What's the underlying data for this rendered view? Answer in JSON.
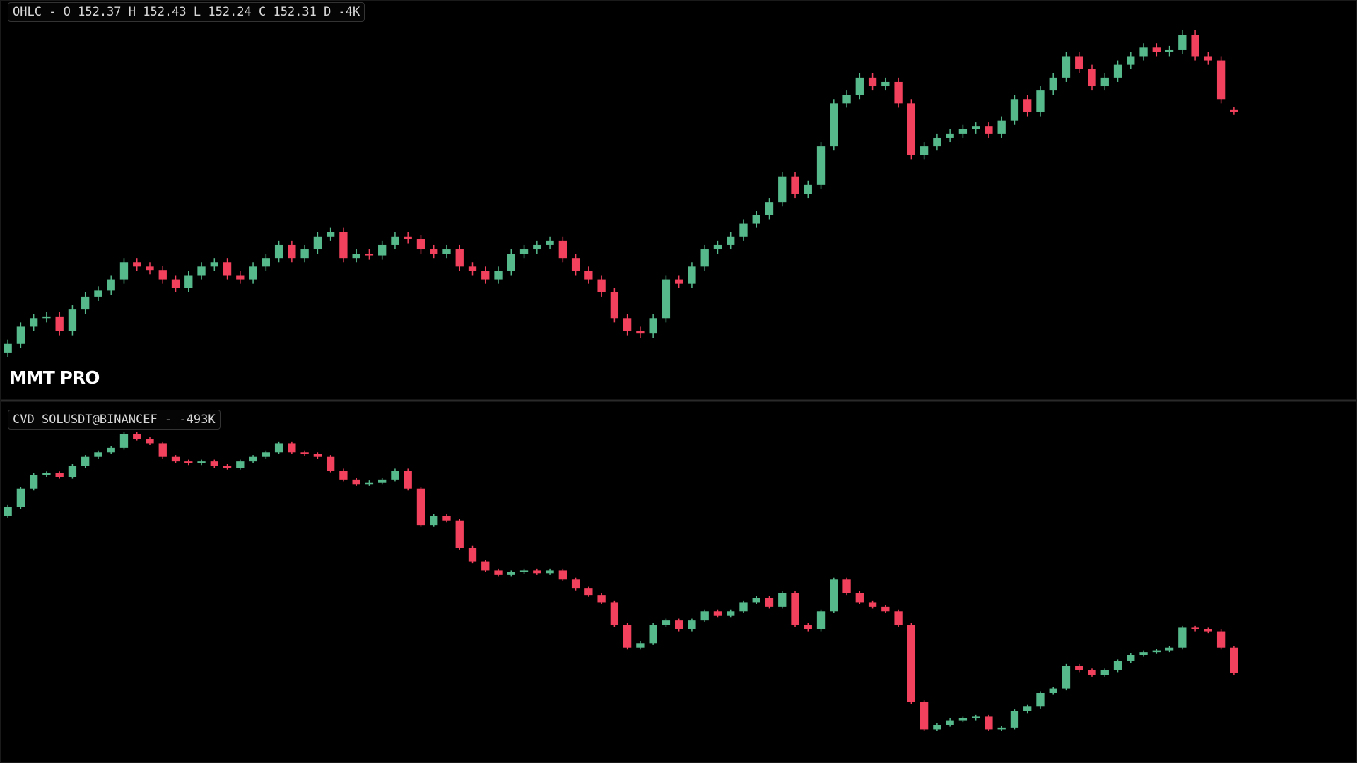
{
  "chart_data": [
    {
      "type": "candlestick",
      "legend": "OHLC - O 152.37 H 152.43 L 152.24 C 152.31 D -4K",
      "watermark": "MMT PRO",
      "up_color": "#56b98c",
      "down_color": "#f2415c",
      "open": [
        146.71,
        146.91,
        147.31,
        147.51,
        147.55,
        147.21,
        147.71,
        148.01,
        148.15,
        148.41,
        148.81,
        148.71,
        148.63,
        148.41,
        148.21,
        148.51,
        148.71,
        148.81,
        148.51,
        148.41,
        148.71,
        148.91,
        149.21,
        148.91,
        149.11,
        149.41,
        149.51,
        148.91,
        149.01,
        148.97,
        149.21,
        149.41,
        149.35,
        149.11,
        149.01,
        149.11,
        148.71,
        148.61,
        148.41,
        148.61,
        149.01,
        149.11,
        149.21,
        149.31,
        148.91,
        148.61,
        148.41,
        148.11,
        147.51,
        147.21,
        147.15,
        147.51,
        148.41,
        148.31,
        148.71,
        149.11,
        149.21,
        149.41,
        149.71,
        149.91,
        150.21,
        150.81,
        150.41,
        150.61,
        151.51,
        152.51,
        152.71,
        153.11,
        152.91,
        153.01,
        152.51,
        151.31,
        151.51,
        151.71,
        151.81,
        151.91,
        151.97,
        151.81,
        152.11,
        152.61,
        152.31,
        152.81,
        153.11,
        153.61,
        153.31,
        152.91,
        153.11,
        153.41,
        153.61,
        153.81,
        153.71,
        153.75,
        154.11,
        153.61,
        153.51,
        152.37
      ],
      "high": [
        147.01,
        147.41,
        147.61,
        147.65,
        147.65,
        147.81,
        148.11,
        148.25,
        148.51,
        148.91,
        148.91,
        148.81,
        148.73,
        148.51,
        148.61,
        148.81,
        148.91,
        148.91,
        148.61,
        148.81,
        149.01,
        149.31,
        149.31,
        149.21,
        149.51,
        149.61,
        149.61,
        149.11,
        149.11,
        149.31,
        149.51,
        149.51,
        149.45,
        149.21,
        149.21,
        149.21,
        148.81,
        148.71,
        148.71,
        149.11,
        149.21,
        149.31,
        149.41,
        149.41,
        149.01,
        148.71,
        148.51,
        148.21,
        147.61,
        147.31,
        147.61,
        148.51,
        148.51,
        148.81,
        149.21,
        149.31,
        149.51,
        149.81,
        150.01,
        150.31,
        150.91,
        150.91,
        150.71,
        151.61,
        152.61,
        152.81,
        153.21,
        153.21,
        153.11,
        153.11,
        152.61,
        151.61,
        151.81,
        151.91,
        152.01,
        152.07,
        152.07,
        152.21,
        152.71,
        152.71,
        152.91,
        153.21,
        153.71,
        153.71,
        153.41,
        153.21,
        153.51,
        153.71,
        153.91,
        153.91,
        153.85,
        154.21,
        154.21,
        153.71,
        153.61,
        152.43
      ],
      "low": [
        146.61,
        146.81,
        147.21,
        147.41,
        147.11,
        147.11,
        147.61,
        147.91,
        148.05,
        148.31,
        148.61,
        148.53,
        148.31,
        148.11,
        148.11,
        148.41,
        148.61,
        148.41,
        148.31,
        148.31,
        148.61,
        148.81,
        148.81,
        148.81,
        149.01,
        149.31,
        148.81,
        148.81,
        148.87,
        148.87,
        149.11,
        149.25,
        149.01,
        148.91,
        148.91,
        148.61,
        148.51,
        148.31,
        148.31,
        148.51,
        148.91,
        149.01,
        149.11,
        148.81,
        148.51,
        148.31,
        148.01,
        147.41,
        147.11,
        147.05,
        147.05,
        147.41,
        148.21,
        148.21,
        148.61,
        149.01,
        149.11,
        149.31,
        149.61,
        149.81,
        150.11,
        150.31,
        150.31,
        150.51,
        151.41,
        152.41,
        152.61,
        152.81,
        152.81,
        152.41,
        151.21,
        151.21,
        151.41,
        151.61,
        151.71,
        151.81,
        151.71,
        151.71,
        152.01,
        152.21,
        152.21,
        152.71,
        153.01,
        153.21,
        152.81,
        152.81,
        153.01,
        153.31,
        153.51,
        153.61,
        153.61,
        153.65,
        153.51,
        153.41,
        152.51,
        152.24
      ],
      "close": [
        146.91,
        147.31,
        147.51,
        147.55,
        147.21,
        147.71,
        148.01,
        148.15,
        148.41,
        148.81,
        148.71,
        148.63,
        148.41,
        148.21,
        148.51,
        148.71,
        148.81,
        148.51,
        148.41,
        148.71,
        148.91,
        149.21,
        148.91,
        149.11,
        149.41,
        149.51,
        148.91,
        149.01,
        148.97,
        149.21,
        149.41,
        149.35,
        149.11,
        149.01,
        149.11,
        148.71,
        148.61,
        148.41,
        148.61,
        149.01,
        149.11,
        149.21,
        149.31,
        148.91,
        148.61,
        148.41,
        148.11,
        147.51,
        147.21,
        147.15,
        147.51,
        148.41,
        148.31,
        148.71,
        149.11,
        149.21,
        149.41,
        149.71,
        149.91,
        150.21,
        150.81,
        150.41,
        150.61,
        151.51,
        152.51,
        152.71,
        153.11,
        152.91,
        153.01,
        152.51,
        151.31,
        151.51,
        151.71,
        151.81,
        151.91,
        151.97,
        151.81,
        152.11,
        152.61,
        152.31,
        152.81,
        153.11,
        153.61,
        153.31,
        152.91,
        153.11,
        153.41,
        153.61,
        153.81,
        153.71,
        153.75,
        154.11,
        153.61,
        153.51,
        152.61,
        152.31
      ]
    },
    {
      "type": "candlestick",
      "legend": "CVD SOLUSDT@BINANCEF - -493K",
      "up_color": "#56b98c",
      "down_color": "#f2415c",
      "open": [
        1237000,
        1337000,
        1537000,
        1687000,
        1707000,
        1667000,
        1787000,
        1887000,
        1937000,
        1987000,
        2137000,
        2087000,
        2037000,
        1887000,
        1837000,
        1817000,
        1837000,
        1787000,
        1767000,
        1837000,
        1887000,
        1937000,
        2037000,
        1937000,
        1917000,
        1887000,
        1737000,
        1637000,
        1587000,
        1607000,
        1637000,
        1737000,
        1537000,
        1137000,
        1237000,
        1187000,
        887000,
        737000,
        637000,
        587000,
        617000,
        637000,
        607000,
        637000,
        537000,
        437000,
        367000,
        287000,
        37000,
        -213000,
        -163000,
        37000,
        87000,
        -13000,
        87000,
        187000,
        137000,
        187000,
        287000,
        337000,
        237000,
        387000,
        37000,
        -13000,
        187000,
        537000,
        387000,
        287000,
        237000,
        187000,
        37000,
        -813000,
        -1113000,
        -1063000,
        -1013000,
        -993000,
        -973000,
        -1113000,
        -1093000,
        -913000,
        -863000,
        -713000,
        -663000,
        -413000,
        -463000,
        -513000,
        -463000,
        -363000,
        -293000,
        -263000,
        -243000,
        -213000,
        7000,
        -13000,
        -33000,
        -213000
      ],
      "high": [
        1357000,
        1557000,
        1707000,
        1727000,
        1727000,
        1807000,
        1907000,
        1957000,
        2007000,
        2157000,
        2157000,
        2107000,
        2057000,
        1907000,
        1857000,
        1857000,
        1857000,
        1807000,
        1857000,
        1907000,
        1957000,
        2057000,
        2057000,
        1957000,
        1937000,
        1907000,
        1757000,
        1657000,
        1627000,
        1657000,
        1757000,
        1757000,
        1557000,
        1257000,
        1257000,
        1207000,
        907000,
        757000,
        657000,
        637000,
        657000,
        657000,
        657000,
        657000,
        557000,
        457000,
        387000,
        307000,
        57000,
        -143000,
        57000,
        107000,
        107000,
        107000,
        207000,
        207000,
        207000,
        307000,
        357000,
        357000,
        407000,
        407000,
        57000,
        207000,
        557000,
        557000,
        407000,
        307000,
        257000,
        207000,
        57000,
        -793000,
        -1043000,
        -993000,
        -973000,
        -953000,
        -953000,
        -1073000,
        -893000,
        -843000,
        -693000,
        -643000,
        -393000,
        -393000,
        -443000,
        -443000,
        -343000,
        -273000,
        -243000,
        -223000,
        -193000,
        27000,
        27000,
        7000,
        -13000,
        -193000
      ],
      "low": [
        1217000,
        1317000,
        1517000,
        1667000,
        1647000,
        1647000,
        1767000,
        1867000,
        1917000,
        1967000,
        2067000,
        2017000,
        1867000,
        1817000,
        1797000,
        1797000,
        1767000,
        1747000,
        1747000,
        1817000,
        1867000,
        1917000,
        1917000,
        1897000,
        1867000,
        1717000,
        1617000,
        1567000,
        1567000,
        1587000,
        1617000,
        1517000,
        1117000,
        1117000,
        1167000,
        867000,
        717000,
        617000,
        567000,
        567000,
        597000,
        587000,
        587000,
        517000,
        417000,
        347000,
        267000,
        17000,
        -233000,
        -233000,
        -183000,
        17000,
        -33000,
        -33000,
        67000,
        117000,
        117000,
        167000,
        267000,
        217000,
        217000,
        17000,
        -33000,
        -33000,
        167000,
        367000,
        267000,
        217000,
        167000,
        17000,
        -833000,
        -1133000,
        -1133000,
        -1083000,
        -1033000,
        -1013000,
        -1133000,
        -1133000,
        -1113000,
        -933000,
        -883000,
        -733000,
        -683000,
        -483000,
        -533000,
        -533000,
        -483000,
        -383000,
        -313000,
        -283000,
        -263000,
        -233000,
        -33000,
        -53000,
        -233000,
        -513000
      ],
      "close": [
        1337000,
        1537000,
        1687000,
        1707000,
        1667000,
        1787000,
        1887000,
        1937000,
        1987000,
        2137000,
        2087000,
        2037000,
        1887000,
        1837000,
        1817000,
        1837000,
        1787000,
        1767000,
        1837000,
        1887000,
        1937000,
        2037000,
        1937000,
        1917000,
        1887000,
        1737000,
        1637000,
        1587000,
        1607000,
        1637000,
        1737000,
        1537000,
        1137000,
        1237000,
        1187000,
        887000,
        737000,
        637000,
        587000,
        617000,
        637000,
        607000,
        637000,
        537000,
        437000,
        367000,
        287000,
        37000,
        -213000,
        -163000,
        37000,
        87000,
        -13000,
        87000,
        187000,
        137000,
        187000,
        287000,
        337000,
        237000,
        387000,
        37000,
        -13000,
        187000,
        537000,
        387000,
        287000,
        237000,
        187000,
        37000,
        -813000,
        -1113000,
        -1063000,
        -1013000,
        -993000,
        -973000,
        -1113000,
        -1093000,
        -913000,
        -863000,
        -713000,
        -663000,
        -413000,
        -463000,
        -513000,
        -463000,
        -363000,
        -293000,
        -263000,
        -243000,
        -213000,
        7000,
        -13000,
        -33000,
        -213000,
        -493000
      ]
    }
  ]
}
